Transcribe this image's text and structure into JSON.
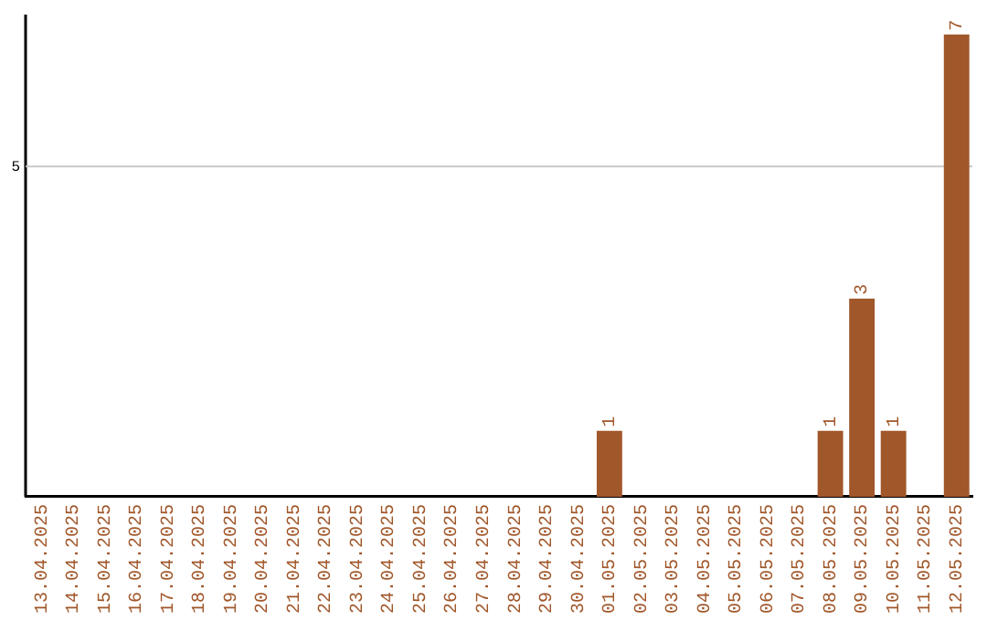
{
  "chart_data": {
    "type": "bar",
    "categories": [
      "13.04.2025",
      "14.04.2025",
      "15.04.2025",
      "16.04.2025",
      "17.04.2025",
      "18.04.2025",
      "19.04.2025",
      "20.04.2025",
      "21.04.2025",
      "22.04.2025",
      "23.04.2025",
      "24.04.2025",
      "25.04.2025",
      "26.04.2025",
      "27.04.2025",
      "28.04.2025",
      "29.04.2025",
      "30.04.2025",
      "01.05.2025",
      "02.05.2025",
      "03.05.2025",
      "04.05.2025",
      "05.05.2025",
      "06.05.2025",
      "07.05.2025",
      "08.05.2025",
      "09.05.2025",
      "10.05.2025",
      "11.05.2025",
      "12.05.2025"
    ],
    "values": [
      null,
      null,
      null,
      null,
      null,
      null,
      null,
      null,
      null,
      null,
      null,
      null,
      null,
      null,
      null,
      null,
      null,
      null,
      1,
      null,
      null,
      null,
      null,
      null,
      null,
      1,
      3,
      1,
      null,
      7
    ],
    "value_labels": [
      null,
      null,
      null,
      null,
      null,
      null,
      null,
      null,
      null,
      null,
      null,
      null,
      null,
      null,
      null,
      null,
      null,
      null,
      "1",
      null,
      null,
      null,
      null,
      null,
      null,
      "1",
      "3",
      "1",
      null,
      "7"
    ],
    "color": "#a0572a",
    "ylim": [
      0,
      7.3
    ],
    "ref_lines": [
      {
        "axis": "y",
        "value": 5,
        "label": "5",
        "color": "#c8c8c8"
      }
    ],
    "legend": false
  }
}
